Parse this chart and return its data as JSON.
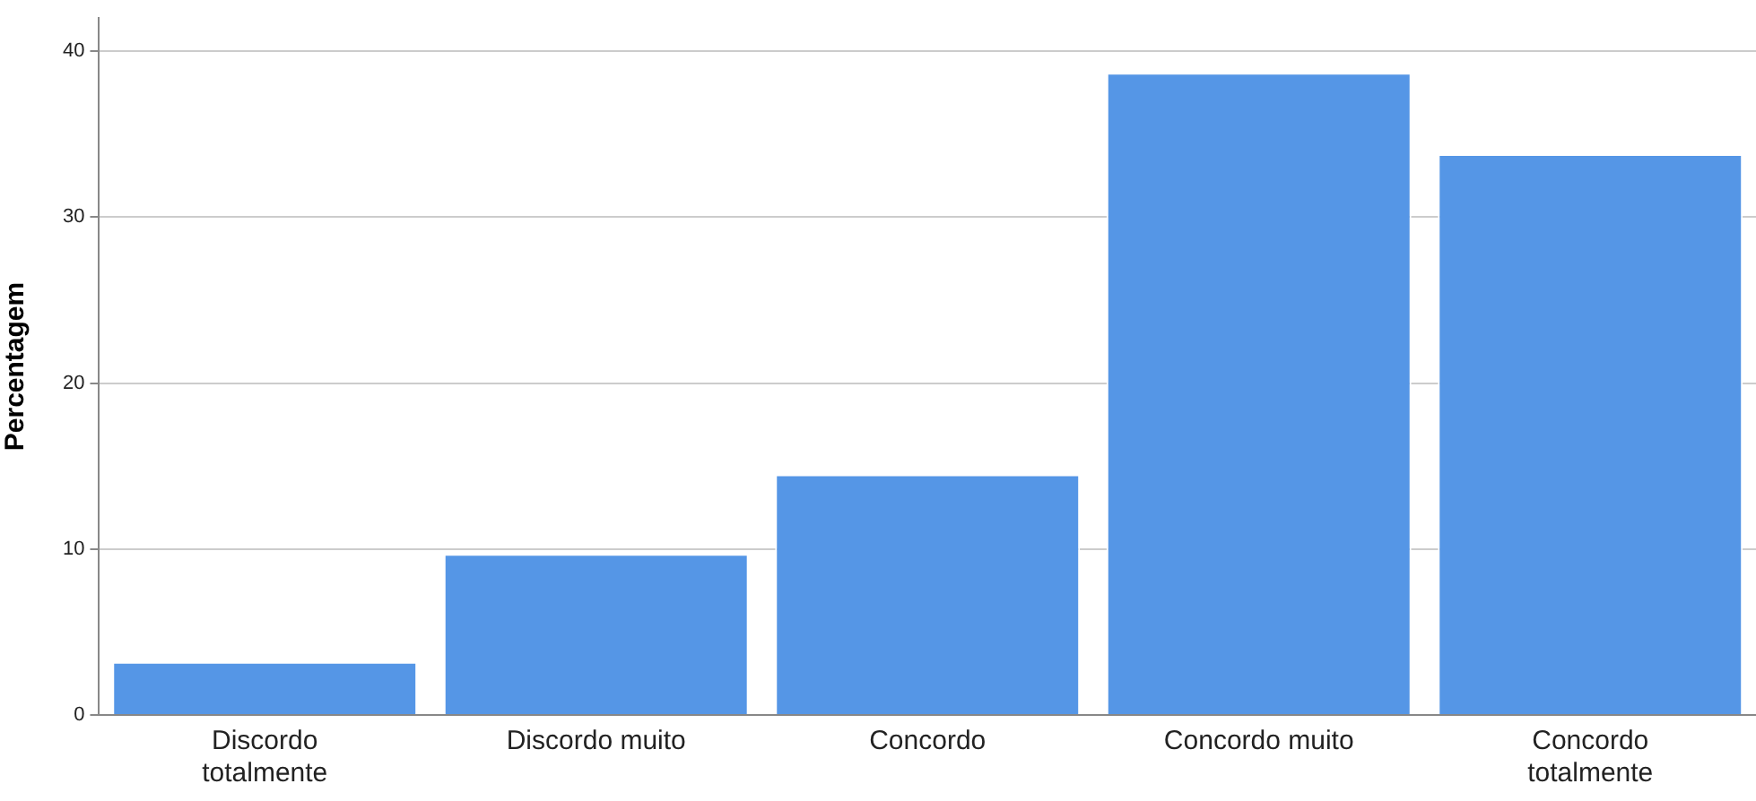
{
  "chart_data": {
    "type": "bar",
    "ylabel": "Percentagem",
    "categories": [
      "Discordo totalmente",
      "Discordo muito",
      "Concordo",
      "Concordo muito",
      "Concordo totalmente"
    ],
    "values": [
      3.2,
      9.7,
      14.5,
      38.7,
      33.8
    ],
    "color": "#5596e6",
    "ylim": [
      0,
      42
    ],
    "yticks": [
      0,
      10,
      20,
      30,
      40
    ],
    "grid": "y",
    "legend": false
  }
}
